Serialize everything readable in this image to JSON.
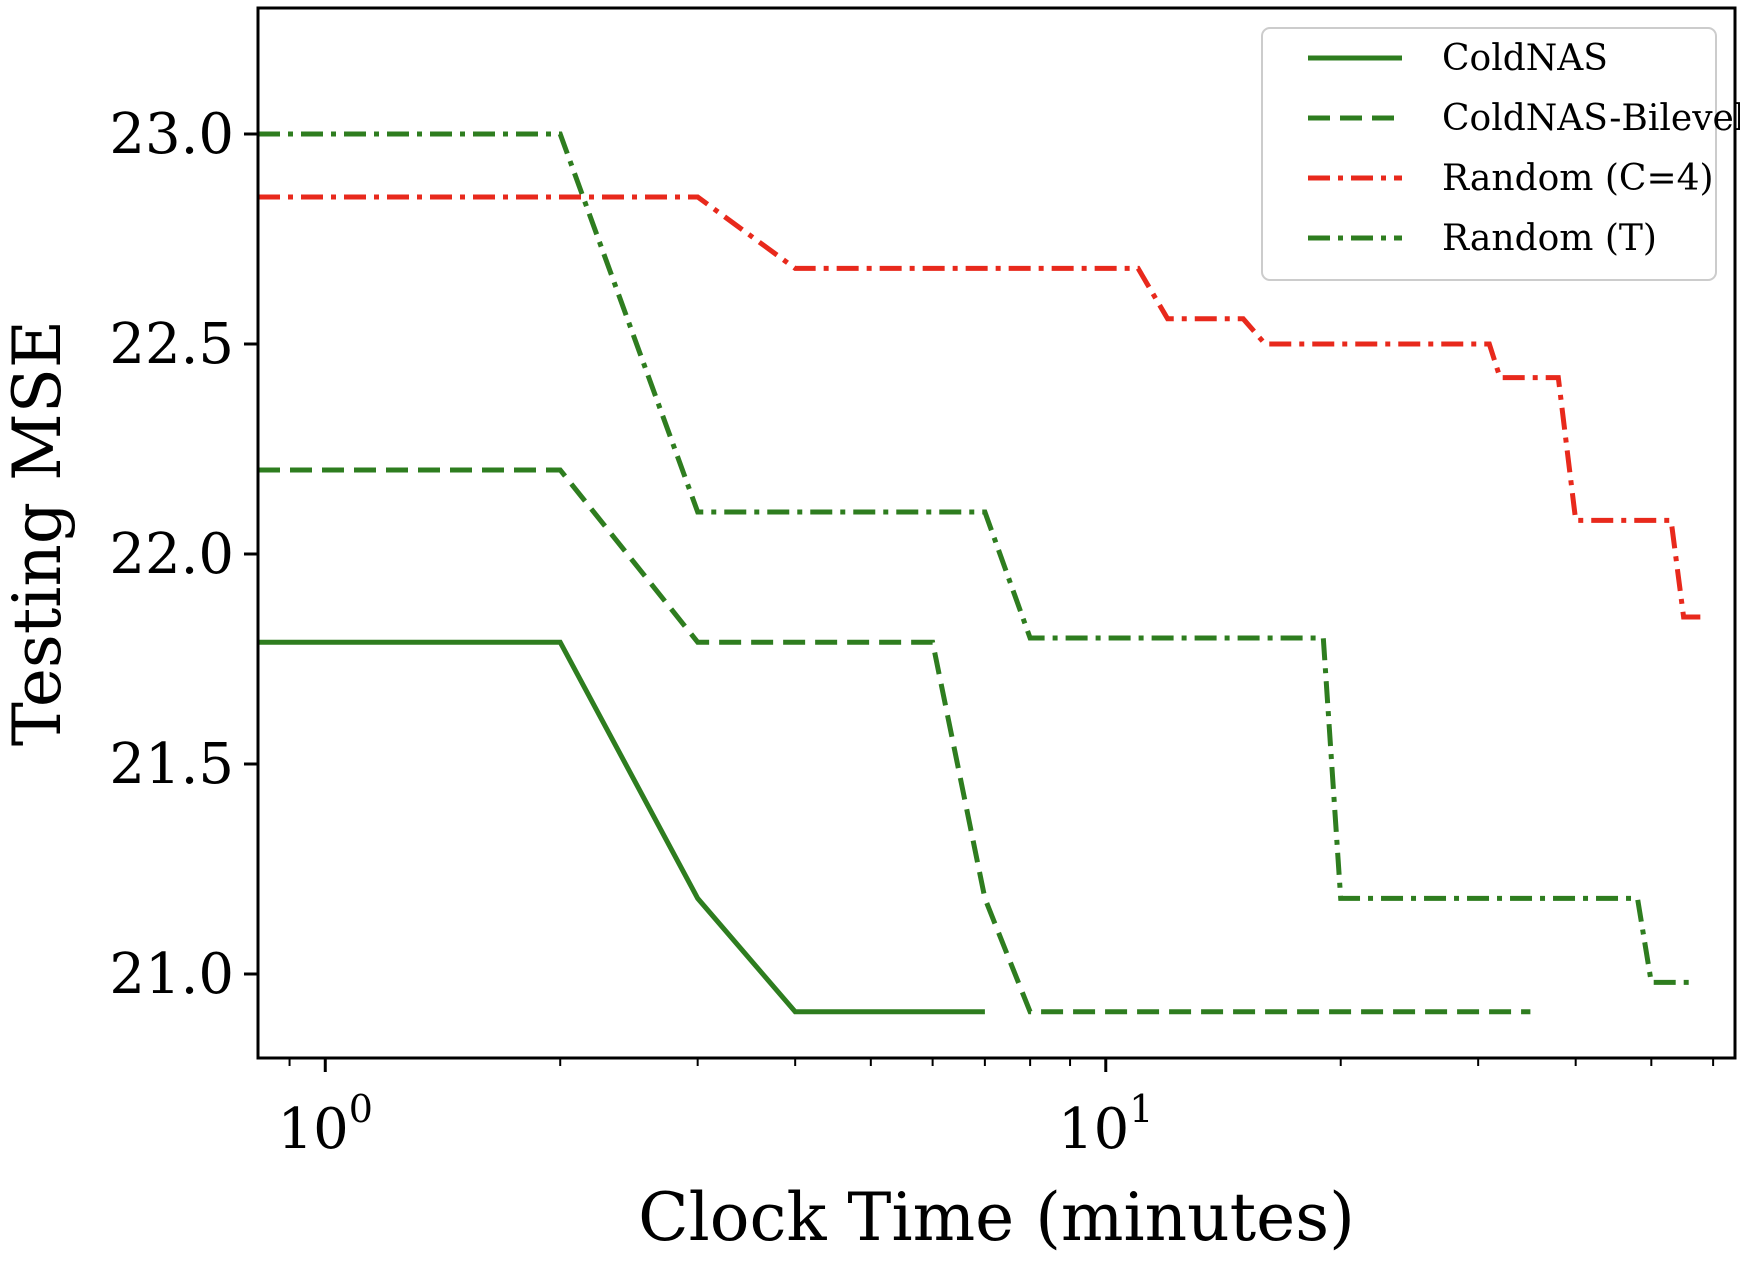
{
  "chart_data": {
    "type": "line",
    "title": "",
    "xlabel": "Clock Time (minutes)",
    "ylabel": "Testing MSE",
    "x_scale": "log",
    "xlim": [
      0.82,
      64
    ],
    "ylim": [
      20.8,
      23.3
    ],
    "x_ticks": [
      {
        "value": 1,
        "base": "10",
        "exp": "0"
      },
      {
        "value": 10,
        "base": "10",
        "exp": "1"
      }
    ],
    "y_ticks": [
      {
        "value": 21.0,
        "label": "21.0"
      },
      {
        "value": 21.5,
        "label": "21.5"
      },
      {
        "value": 22.0,
        "label": "22.0"
      },
      {
        "value": 22.5,
        "label": "22.5"
      },
      {
        "value": 23.0,
        "label": "23.0"
      }
    ],
    "grid": false,
    "legend_position": "top-right",
    "series": [
      {
        "name": "ColdNAS",
        "color": "#2e7d1f",
        "style": "solid",
        "x": [
          0.82,
          2.0,
          3.0,
          4.0,
          7.0
        ],
        "y": [
          21.79,
          21.79,
          21.18,
          20.91,
          20.91
        ]
      },
      {
        "name": "ColdNAS-Bilevel",
        "color": "#2e7d1f",
        "style": "dashed",
        "x": [
          0.82,
          2.0,
          3.0,
          6.0,
          7.0,
          8.0,
          35.0
        ],
        "y": [
          22.2,
          22.2,
          21.79,
          21.79,
          21.18,
          20.91,
          20.91
        ]
      },
      {
        "name": "Random (C=4)",
        "color": "#e8291c",
        "style": "dashdot",
        "x": [
          0.82,
          3.0,
          4.0,
          11.0,
          12.0,
          15.0,
          16.0,
          31.0,
          32.0,
          38.0,
          40.0,
          53.0,
          55.0,
          58.0
        ],
        "y": [
          22.85,
          22.85,
          22.68,
          22.68,
          22.56,
          22.56,
          22.5,
          22.5,
          22.42,
          22.42,
          22.08,
          22.08,
          21.85,
          21.85
        ]
      },
      {
        "name": "Random (T)",
        "color": "#2e7d1f",
        "style": "dashdot",
        "x": [
          0.82,
          2.0,
          3.0,
          7.0,
          8.0,
          19.0,
          20.0,
          48.0,
          50.0,
          57.0
        ],
        "y": [
          23.0,
          23.0,
          22.1,
          22.1,
          21.8,
          21.8,
          21.18,
          21.18,
          20.98,
          20.98
        ]
      }
    ]
  }
}
